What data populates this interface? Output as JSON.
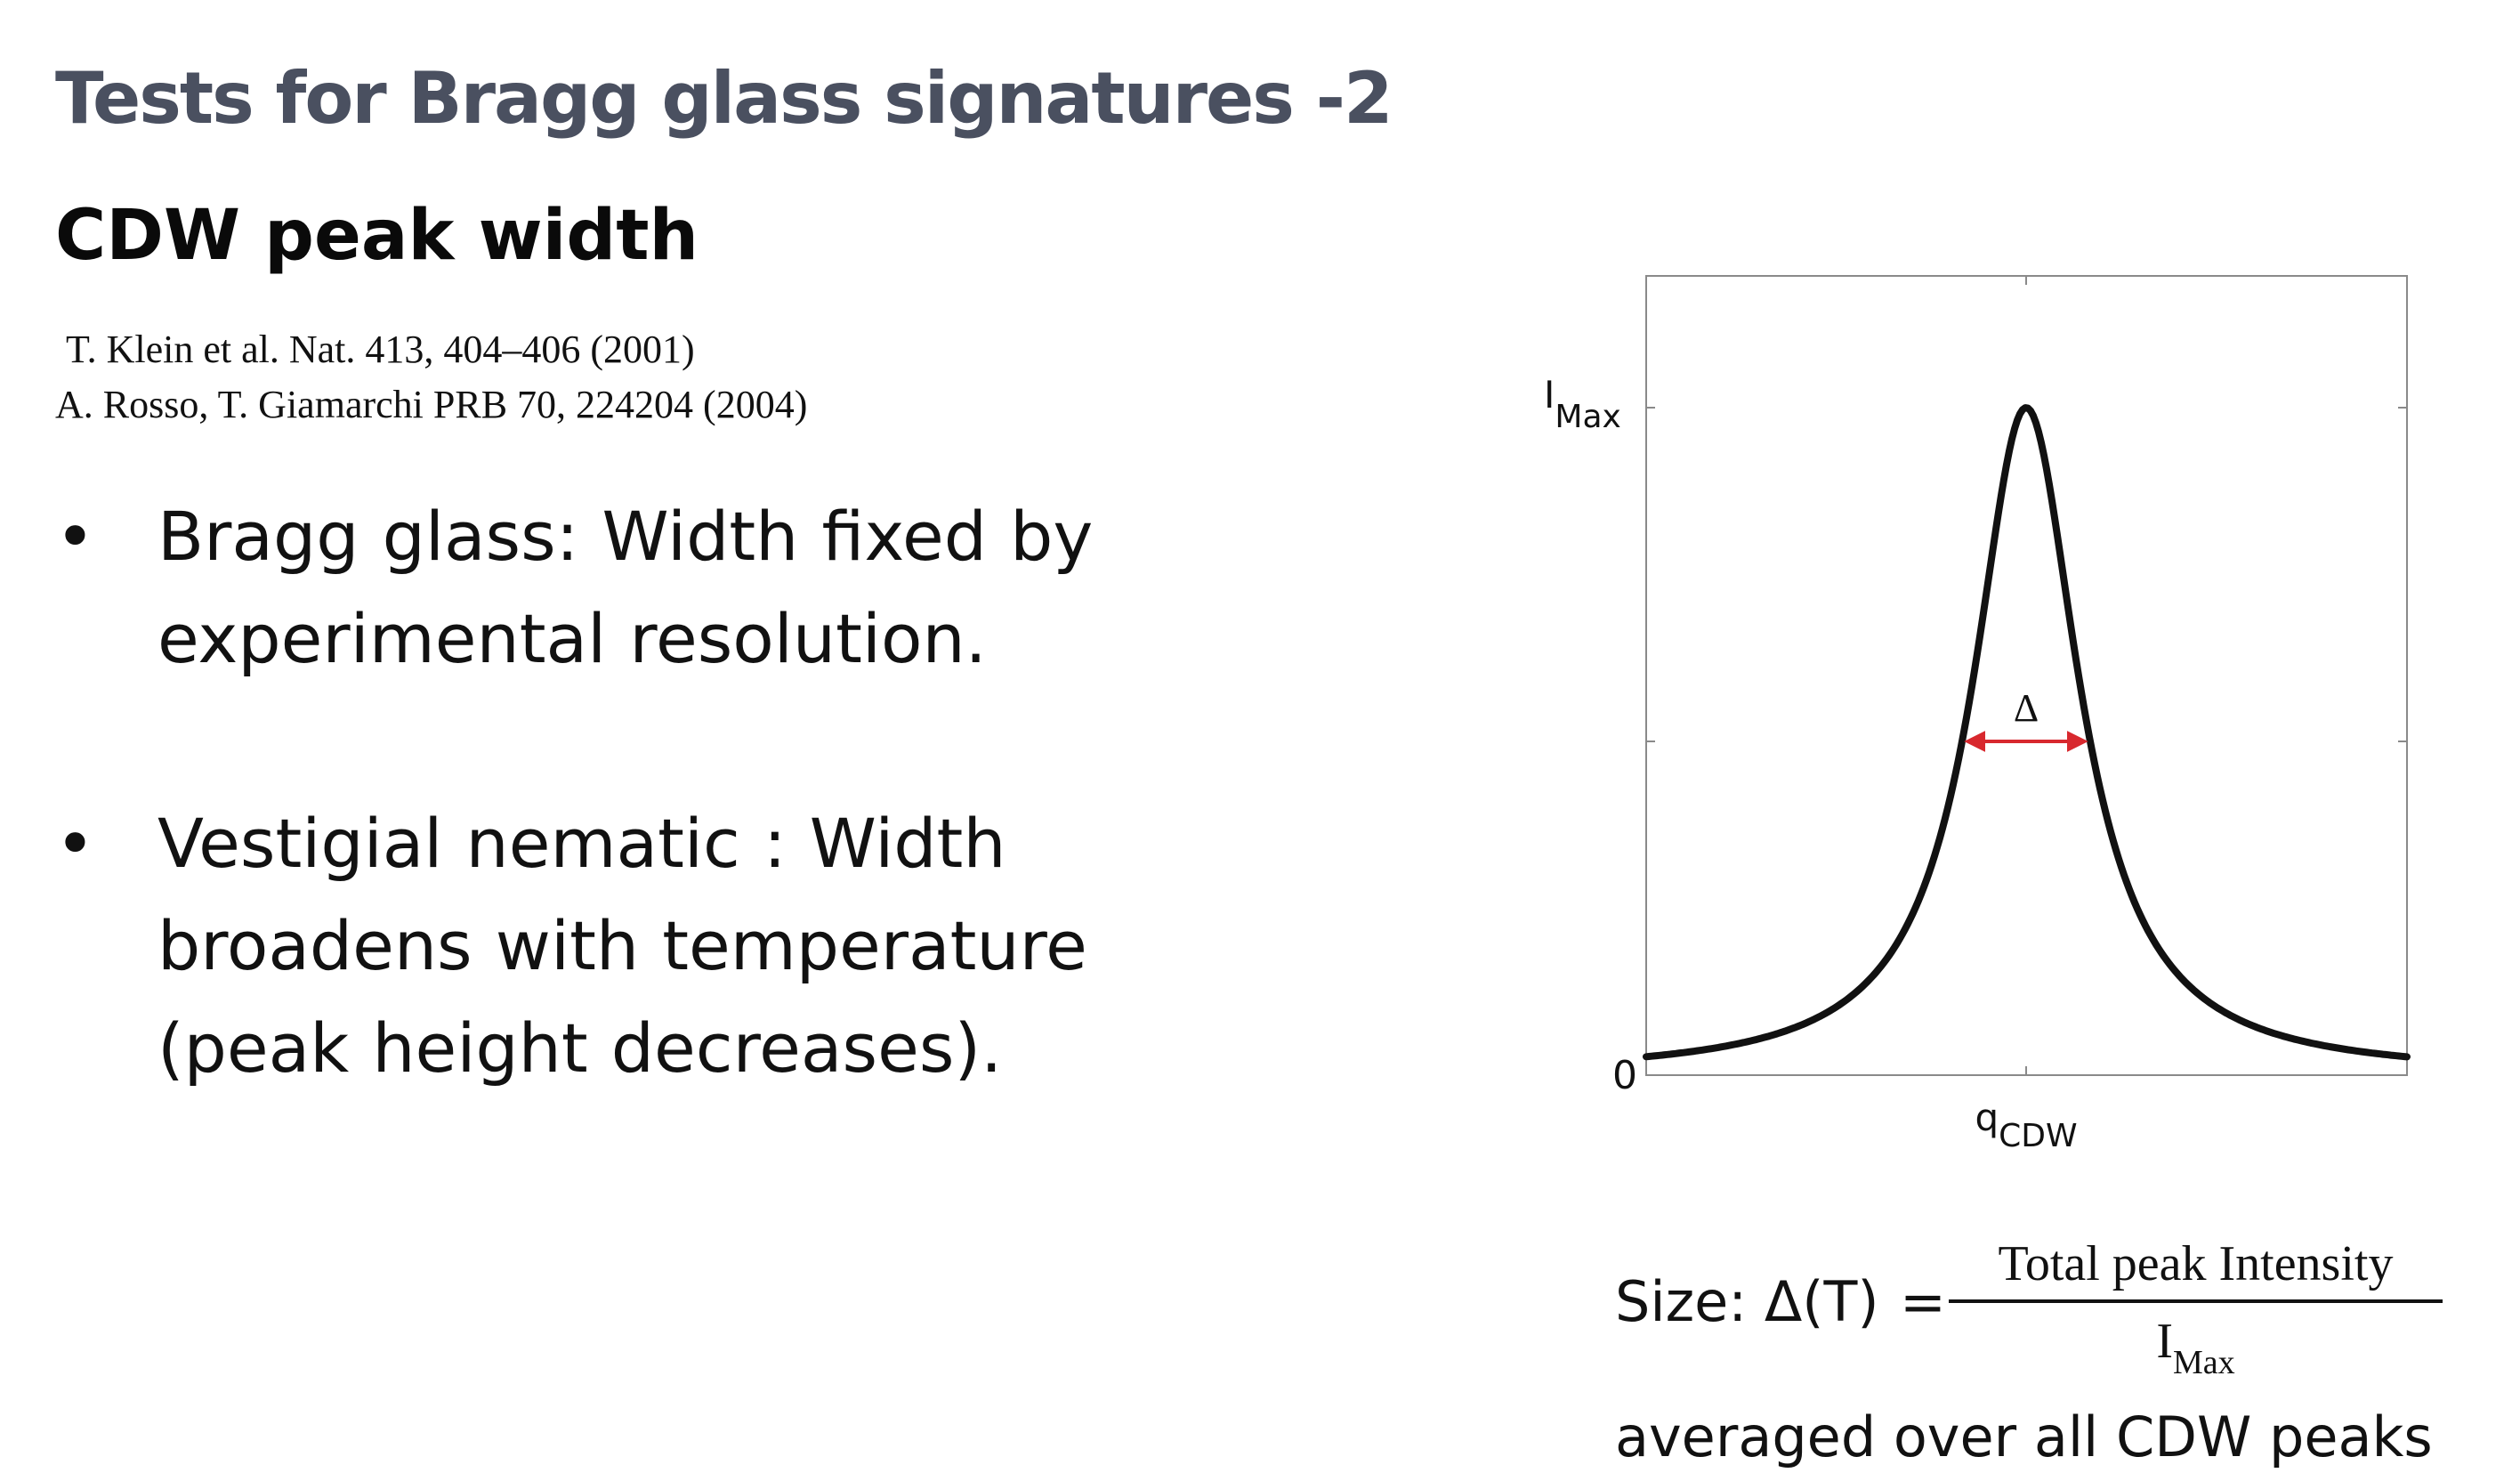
{
  "title": "Tests for Bragg glass signatures -2",
  "subtitle": "CDW peak width",
  "references": [
    "T. Klein et al. Nat. 413, 404–406 (2001)",
    "A. Rosso, T. Giamarchi PRB 70, 224204 (2004)"
  ],
  "bullets": [
    {
      "marker": "•",
      "text": "Bragg glass: Width fixed by experimental resolution."
    },
    {
      "marker": "•",
      "text": "Vestigial nematic : Width broadens with temperature (peak height decreases)."
    }
  ],
  "figure": {
    "y_label_main": "I",
    "y_label_sub": "Max",
    "y_zero_label": "0",
    "x_label_main": "q",
    "x_label_sub": "CDW",
    "width_label": "Δ",
    "curve_color": "#111111",
    "arrow_color": "#d8282e"
  },
  "formula": {
    "lhs": "Size: Δ(T)",
    "equals": "=",
    "numerator": "Total peak Intensity",
    "denominator_main": "I",
    "denominator_sub": "Max"
  },
  "footer_note": "averaged over all CDW peaks"
}
